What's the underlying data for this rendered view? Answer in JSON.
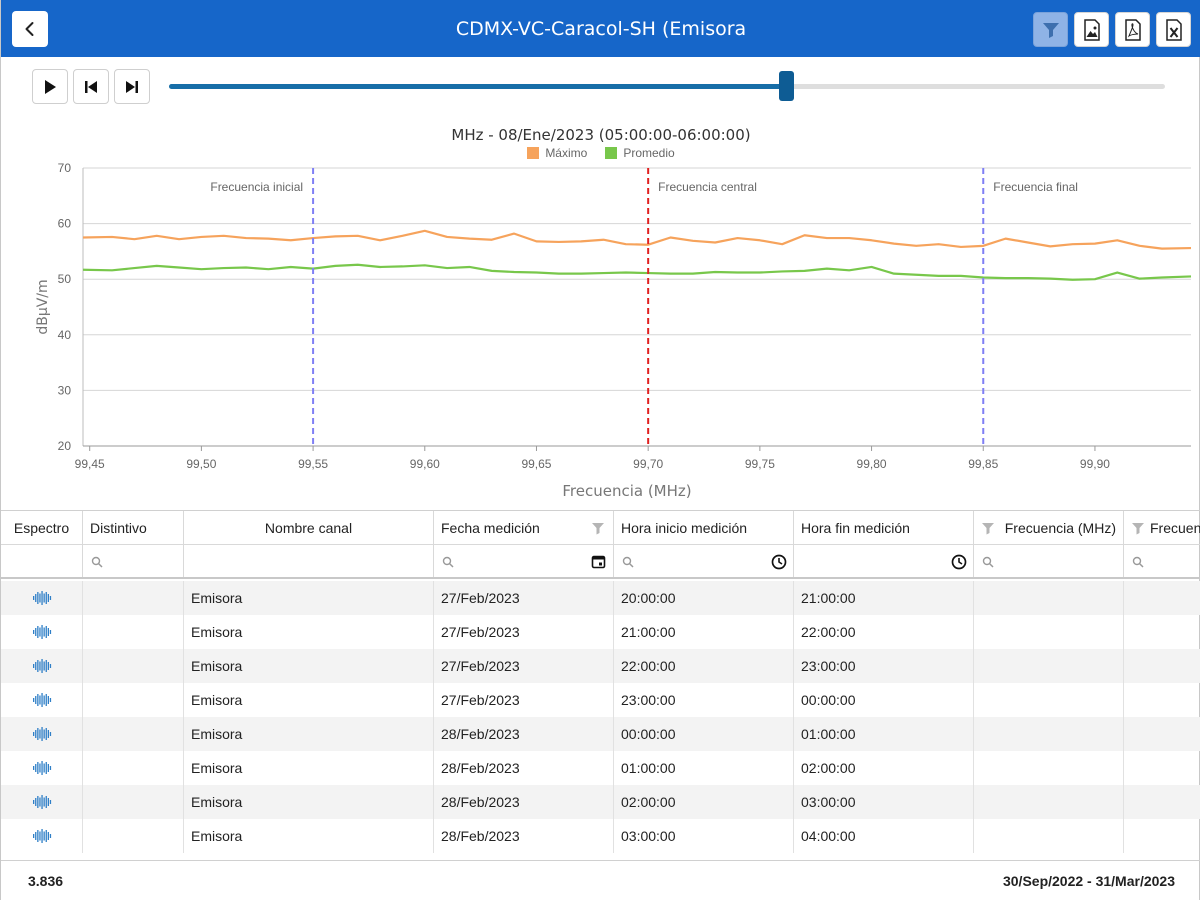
{
  "header": {
    "title": "CDMX-VC-Caracol-SH (Emisora",
    "back_icon": "chevron-left-icon",
    "buttons": [
      "filter-icon",
      "image-export-icon",
      "pdf-export-icon",
      "excel-export-icon"
    ],
    "accent": "#1666c9"
  },
  "player": {
    "controls": [
      "play-icon",
      "skip-back-icon",
      "skip-forward-icon"
    ],
    "progress": 0.62
  },
  "chart_data": {
    "type": "line",
    "title": "MHz - 08/Ene/2023 (05:00:00-06:00:00)",
    "xlabel": "Frecuencia (MHz)",
    "ylabel": "dBµV/m",
    "xlim": [
      99.447,
      99.943
    ],
    "ylim": [
      20,
      70
    ],
    "y_ticks": [
      20,
      30,
      40,
      50,
      60,
      70
    ],
    "x_ticks": [
      99.45,
      99.5,
      99.55,
      99.6,
      99.65,
      99.7,
      99.75,
      99.8,
      99.85,
      99.9
    ],
    "x_tick_labels": [
      "99,45",
      "99,50",
      "99,55",
      "99,60",
      "99,65",
      "99,70",
      "99,75",
      "99,80",
      "99,85",
      "99,90"
    ],
    "grid": true,
    "legend_placement": "top-center",
    "series": [
      {
        "name": "Máximo",
        "color": "#f6a35c",
        "x": [
          99.447,
          99.46,
          99.47,
          99.48,
          99.49,
          99.5,
          99.51,
          99.52,
          99.53,
          99.54,
          99.55,
          99.56,
          99.57,
          99.58,
          99.59,
          99.6,
          99.61,
          99.62,
          99.63,
          99.64,
          99.65,
          99.66,
          99.67,
          99.68,
          99.69,
          99.7,
          99.71,
          99.72,
          99.73,
          99.74,
          99.75,
          99.76,
          99.77,
          99.78,
          99.79,
          99.8,
          99.81,
          99.82,
          99.83,
          99.84,
          99.85,
          99.86,
          99.87,
          99.88,
          99.89,
          99.9,
          99.91,
          99.92,
          99.93,
          99.943
        ],
        "values": [
          57.5,
          57.6,
          57.2,
          57.8,
          57.2,
          57.6,
          57.8,
          57.4,
          57.3,
          57.0,
          57.4,
          57.7,
          57.8,
          57.0,
          57.8,
          58.7,
          57.6,
          57.3,
          57.1,
          58.2,
          56.8,
          56.7,
          56.8,
          57.1,
          56.3,
          56.2,
          57.5,
          56.9,
          56.6,
          57.4,
          57.0,
          56.3,
          57.9,
          57.4,
          57.4,
          57.0,
          56.4,
          56.0,
          56.3,
          55.8,
          56.0,
          57.3,
          56.6,
          55.9,
          56.3,
          56.4,
          57.0,
          56.0,
          55.5,
          55.6
        ]
      },
      {
        "name": "Promedio",
        "color": "#78c74b",
        "x": [
          99.447,
          99.46,
          99.47,
          99.48,
          99.49,
          99.5,
          99.51,
          99.52,
          99.53,
          99.54,
          99.55,
          99.56,
          99.57,
          99.58,
          99.59,
          99.6,
          99.61,
          99.62,
          99.63,
          99.64,
          99.65,
          99.66,
          99.67,
          99.68,
          99.69,
          99.7,
          99.71,
          99.72,
          99.73,
          99.74,
          99.75,
          99.76,
          99.77,
          99.78,
          99.79,
          99.8,
          99.81,
          99.82,
          99.83,
          99.84,
          99.85,
          99.86,
          99.87,
          99.88,
          99.89,
          99.9,
          99.91,
          99.92,
          99.93,
          99.943
        ],
        "values": [
          51.7,
          51.6,
          52.0,
          52.4,
          52.1,
          51.8,
          52.0,
          52.1,
          51.8,
          52.2,
          51.9,
          52.4,
          52.6,
          52.2,
          52.3,
          52.5,
          52.0,
          52.2,
          51.5,
          51.3,
          51.2,
          51.0,
          51.0,
          51.1,
          51.2,
          51.1,
          51.0,
          51.0,
          51.3,
          51.2,
          51.2,
          51.4,
          51.5,
          51.9,
          51.6,
          52.2,
          51.0,
          50.8,
          50.6,
          50.6,
          50.3,
          50.2,
          50.2,
          50.1,
          49.9,
          50.0,
          51.2,
          50.1,
          50.3,
          50.5
        ]
      }
    ],
    "markers": [
      {
        "x": 99.55,
        "label": "Frecuencia inicial",
        "color": "#7f7ff5"
      },
      {
        "x": 99.7,
        "label": "Frecuencia central",
        "color": "#e02020"
      },
      {
        "x": 99.85,
        "label": "Frecuencia final",
        "color": "#7f7ff5"
      }
    ]
  },
  "table": {
    "columns": [
      "Espectro",
      "Distintivo",
      "Nombre canal",
      "Fecha medición",
      "Hora inicio medición",
      "Hora fin medición",
      "Frecuencia (MHz)",
      "Frecuenc"
    ],
    "rows": [
      {
        "nombre": "Emisora",
        "fecha": "27/Feb/2023",
        "inicio": "20:00:00",
        "fin": "21:00:00"
      },
      {
        "nombre": "Emisora",
        "fecha": "27/Feb/2023",
        "inicio": "21:00:00",
        "fin": "22:00:00"
      },
      {
        "nombre": "Emisora",
        "fecha": "27/Feb/2023",
        "inicio": "22:00:00",
        "fin": "23:00:00"
      },
      {
        "nombre": "Emisora",
        "fecha": "27/Feb/2023",
        "inicio": "23:00:00",
        "fin": "00:00:00"
      },
      {
        "nombre": "Emisora",
        "fecha": "28/Feb/2023",
        "inicio": "00:00:00",
        "fin": "01:00:00"
      },
      {
        "nombre": "Emisora",
        "fecha": "28/Feb/2023",
        "inicio": "01:00:00",
        "fin": "02:00:00"
      },
      {
        "nombre": "Emisora",
        "fecha": "28/Feb/2023",
        "inicio": "02:00:00",
        "fin": "03:00:00"
      },
      {
        "nombre": "Emisora",
        "fecha": "28/Feb/2023",
        "inicio": "03:00:00",
        "fin": "04:00:00"
      }
    ]
  },
  "footer": {
    "count": "3.836",
    "date_range": "30/Sep/2022 - 31/Mar/2023"
  }
}
